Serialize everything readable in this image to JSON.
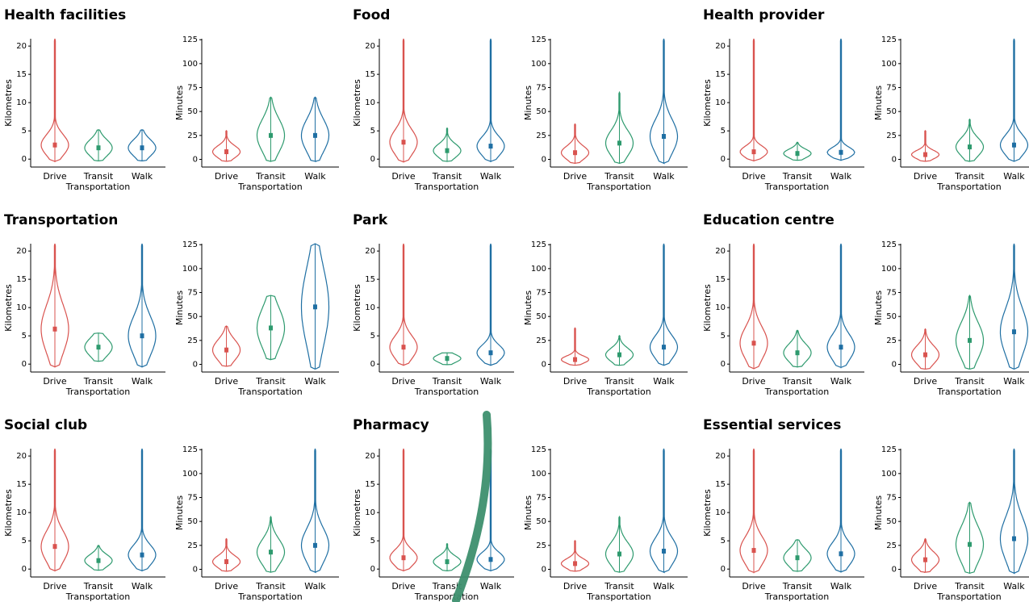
{
  "chart_data": [
    {
      "type": "violin",
      "title": "Health facilities",
      "x_label": "Transportation",
      "y_label": "Kilometres",
      "categories": [
        "Drive",
        "Transit",
        "Walk"
      ],
      "colors": [
        "#d9534f",
        "#2e9a6e",
        "#1f6fa3"
      ],
      "medians": [
        2.5,
        2,
        2
      ],
      "minima": [
        -0.4,
        -0.3,
        -0.3
      ],
      "maxima": [
        21.3,
        5.2,
        5.2
      ],
      "ylim": [
        -1.4,
        21.3
      ],
      "yticks": [
        0,
        5,
        10,
        15,
        20
      ]
    },
    {
      "type": "violin",
      "x_label": "Transportation",
      "y_label": "Minutes",
      "categories": [
        "Drive",
        "Transit",
        "Walk"
      ],
      "colors": [
        "#d9534f",
        "#2e9a6e",
        "#1f6fa3"
      ],
      "medians": [
        8,
        25,
        25
      ],
      "minima": [
        -2,
        -2,
        -2
      ],
      "maxima": [
        30,
        65,
        65
      ],
      "ylim": [
        -8,
        126
      ],
      "yticks": [
        0,
        25,
        50,
        75,
        100,
        125
      ]
    },
    {
      "type": "violin",
      "title": "Food",
      "x_label": "Transportation",
      "y_label": "Kilometres",
      "categories": [
        "Drive",
        "Transit",
        "Walk"
      ],
      "colors": [
        "#d9534f",
        "#2e9a6e",
        "#1f6fa3"
      ],
      "medians": [
        3,
        1.5,
        2.3
      ],
      "minima": [
        -0.5,
        -0.4,
        -0.4
      ],
      "maxima": [
        21.3,
        5.5,
        21.3
      ],
      "ylim": [
        -1.4,
        21.3
      ],
      "yticks": [
        0,
        5,
        10,
        15,
        20
      ]
    },
    {
      "type": "violin",
      "x_label": "Transportation",
      "y_label": "Minutes",
      "categories": [
        "Drive",
        "Transit",
        "Walk"
      ],
      "colors": [
        "#d9534f",
        "#2e9a6e",
        "#1f6fa3"
      ],
      "medians": [
        7,
        17,
        24
      ],
      "minima": [
        -4,
        -4,
        -4
      ],
      "maxima": [
        37,
        70,
        126
      ],
      "ylim": [
        -8,
        126
      ],
      "yticks": [
        0,
        25,
        50,
        75,
        100,
        125
      ]
    },
    {
      "type": "violin",
      "title": "Health provider",
      "x_label": "Transportation",
      "y_label": "Kilometres",
      "categories": [
        "Drive",
        "Transit",
        "Walk"
      ],
      "colors": [
        "#d9534f",
        "#2e9a6e",
        "#1f6fa3"
      ],
      "medians": [
        1.3,
        1,
        1.2
      ],
      "minima": [
        -0.3,
        -0.2,
        -0.2
      ],
      "maxima": [
        21.3,
        3,
        21.3
      ],
      "ylim": [
        -1.4,
        21.3
      ],
      "yticks": [
        0,
        5,
        10,
        15,
        20
      ]
    },
    {
      "type": "violin",
      "x_label": "Transportation",
      "y_label": "Minutes",
      "categories": [
        "Drive",
        "Transit",
        "Walk"
      ],
      "colors": [
        "#d9534f",
        "#2e9a6e",
        "#1f6fa3"
      ],
      "medians": [
        5,
        13,
        15
      ],
      "minima": [
        -2,
        -2,
        -2
      ],
      "maxima": [
        30,
        42,
        126
      ],
      "ylim": [
        -8,
        126
      ],
      "yticks": [
        0,
        25,
        50,
        75,
        100,
        125
      ]
    },
    {
      "type": "violin",
      "title": "Transportation",
      "x_label": "Transportation",
      "y_label": "Kilometres",
      "categories": [
        "Drive",
        "Transit",
        "Walk"
      ],
      "colors": [
        "#d9534f",
        "#2e9a6e",
        "#1f6fa3"
      ],
      "medians": [
        6.2,
        3,
        5
      ],
      "minima": [
        -0.5,
        0.5,
        -0.5
      ],
      "maxima": [
        21.3,
        5.5,
        21.3
      ],
      "ylim": [
        -1.4,
        21.3
      ],
      "yticks": [
        0,
        5,
        10,
        15,
        20
      ]
    },
    {
      "type": "violin",
      "x_label": "Transportation",
      "y_label": "Minutes",
      "categories": [
        "Drive",
        "Transit",
        "Walk"
      ],
      "colors": [
        "#d9534f",
        "#2e9a6e",
        "#1f6fa3"
      ],
      "medians": [
        15,
        38,
        60
      ],
      "minima": [
        -2,
        5,
        -5
      ],
      "maxima": [
        40,
        72,
        126
      ],
      "ylim": [
        -8,
        126
      ],
      "yticks": [
        0,
        25,
        50,
        75,
        100,
        125
      ]
    },
    {
      "type": "violin",
      "title": "Park",
      "x_label": "Transportation",
      "y_label": "Kilometres",
      "categories": [
        "Drive",
        "Transit",
        "Walk"
      ],
      "colors": [
        "#d9534f",
        "#2e9a6e",
        "#1f6fa3"
      ],
      "medians": [
        3,
        1,
        2
      ],
      "minima": [
        -0.2,
        -0.1,
        -0.2
      ],
      "maxima": [
        21.3,
        2,
        21.3
      ],
      "ylim": [
        -1.4,
        21.3
      ],
      "yticks": [
        0,
        5,
        10,
        15,
        20
      ]
    },
    {
      "type": "violin",
      "x_label": "Transportation",
      "y_label": "Minutes",
      "categories": [
        "Drive",
        "Transit",
        "Walk"
      ],
      "colors": [
        "#d9534f",
        "#2e9a6e",
        "#1f6fa3"
      ],
      "medians": [
        5,
        10,
        18
      ],
      "minima": [
        -1,
        -1,
        -1
      ],
      "maxima": [
        38,
        30,
        126
      ],
      "ylim": [
        -8,
        126
      ],
      "yticks": [
        0,
        25,
        50,
        75,
        100,
        125
      ]
    },
    {
      "type": "violin",
      "title": "Education centre",
      "x_label": "Transportation",
      "y_label": "Kilometres",
      "categories": [
        "Drive",
        "Transit",
        "Walk"
      ],
      "colors": [
        "#d9534f",
        "#2e9a6e",
        "#1f6fa3"
      ],
      "medians": [
        3.7,
        2,
        3
      ],
      "minima": [
        -0.8,
        -0.5,
        -0.6
      ],
      "maxima": [
        21.3,
        6,
        21.3
      ],
      "ylim": [
        -1.4,
        21.3
      ],
      "yticks": [
        0,
        5,
        10,
        15,
        20
      ]
    },
    {
      "type": "violin",
      "x_label": "Transportation",
      "y_label": "Minutes",
      "categories": [
        "Drive",
        "Transit",
        "Walk"
      ],
      "colors": [
        "#d9534f",
        "#2e9a6e",
        "#1f6fa3"
      ],
      "medians": [
        10,
        25,
        34
      ],
      "minima": [
        -5,
        -5,
        -5
      ],
      "maxima": [
        37,
        72,
        126
      ],
      "ylim": [
        -8,
        126
      ],
      "yticks": [
        0,
        25,
        50,
        75,
        100,
        125
      ]
    },
    {
      "type": "violin",
      "title": "Social club",
      "x_label": "Transportation",
      "y_label": "Kilometres",
      "categories": [
        "Drive",
        "Transit",
        "Walk"
      ],
      "colors": [
        "#d9534f",
        "#2e9a6e",
        "#1f6fa3"
      ],
      "medians": [
        4,
        1.5,
        2.5
      ],
      "minima": [
        -0.3,
        -0.2,
        -0.3
      ],
      "maxima": [
        21.3,
        4.2,
        21.3
      ],
      "ylim": [
        -1.4,
        21.3
      ],
      "yticks": [
        0,
        5,
        10,
        15,
        20
      ]
    },
    {
      "type": "violin",
      "x_label": "Transportation",
      "y_label": "Minutes",
      "categories": [
        "Drive",
        "Transit",
        "Walk"
      ],
      "colors": [
        "#d9534f",
        "#2e9a6e",
        "#1f6fa3"
      ],
      "medians": [
        8,
        18,
        25
      ],
      "minima": [
        -2,
        -3,
        -3
      ],
      "maxima": [
        32,
        55,
        126
      ],
      "ylim": [
        -8,
        126
      ],
      "yticks": [
        0,
        25,
        50,
        75,
        100,
        125
      ]
    },
    {
      "type": "violin",
      "title": "Pharmacy",
      "x_label": "Transportation",
      "y_label": "Kilometres",
      "categories": [
        "Drive",
        "Transit",
        "Walk"
      ],
      "colors": [
        "#d9534f",
        "#2e9a6e",
        "#1f6fa3"
      ],
      "medians": [
        2,
        1.3,
        1.7
      ],
      "minima": [
        -0.3,
        -0.3,
        -0.3
      ],
      "maxima": [
        21.3,
        4.5,
        21.3
      ],
      "ylim": [
        -1.4,
        21.3
      ],
      "yticks": [
        0,
        5,
        10,
        15,
        20
      ]
    },
    {
      "type": "violin",
      "x_label": "Transportation",
      "y_label": "Minutes",
      "categories": [
        "Drive",
        "Transit",
        "Walk"
      ],
      "colors": [
        "#d9534f",
        "#2e9a6e",
        "#1f6fa3"
      ],
      "medians": [
        6,
        16,
        19
      ],
      "minima": [
        -2,
        -3,
        -3
      ],
      "maxima": [
        30,
        55,
        126
      ],
      "ylim": [
        -8,
        126
      ],
      "yticks": [
        0,
        25,
        50,
        75,
        100,
        125
      ]
    },
    {
      "type": "violin",
      "title": "Essential services",
      "x_label": "Transportation",
      "y_label": "Kilometres",
      "categories": [
        "Drive",
        "Transit",
        "Walk"
      ],
      "colors": [
        "#d9534f",
        "#2e9a6e",
        "#1f6fa3"
      ],
      "medians": [
        3.3,
        2,
        2.7
      ],
      "minima": [
        -0.6,
        -0.4,
        -0.5
      ],
      "maxima": [
        21.3,
        5.2,
        21.3
      ],
      "ylim": [
        -1.4,
        21.3
      ],
      "yticks": [
        0,
        5,
        10,
        15,
        20
      ]
    },
    {
      "type": "violin",
      "x_label": "Transportation",
      "y_label": "Minutes",
      "categories": [
        "Drive",
        "Transit",
        "Walk"
      ],
      "colors": [
        "#d9534f",
        "#2e9a6e",
        "#1f6fa3"
      ],
      "medians": [
        10,
        26,
        32
      ],
      "minima": [
        -3,
        -4,
        -4
      ],
      "maxima": [
        32,
        70,
        126
      ],
      "ylim": [
        -8,
        126
      ],
      "yticks": [
        0,
        25,
        50,
        75,
        100,
        125
      ]
    }
  ]
}
